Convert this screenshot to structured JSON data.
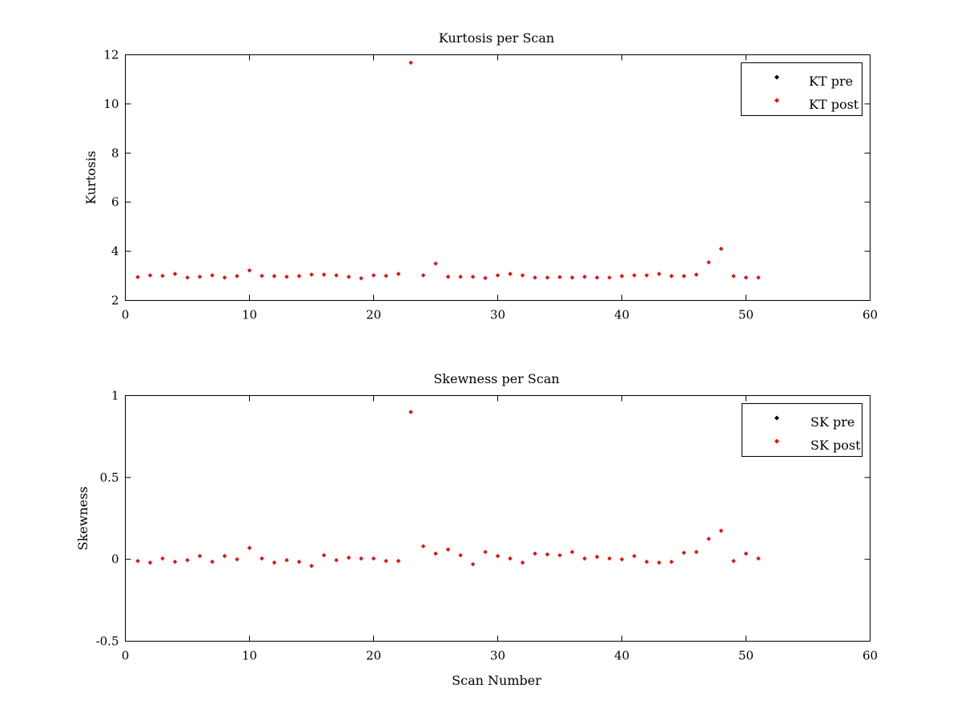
{
  "chart_data": [
    {
      "type": "scatter",
      "title": "Kurtosis per Scan",
      "xlabel": "",
      "ylabel": "Kurtosis",
      "xlim": [
        0,
        60
      ],
      "ylim": [
        2,
        12
      ],
      "xticks": [
        0,
        10,
        20,
        30,
        40,
        50,
        60
      ],
      "yticks": [
        2,
        4,
        6,
        8,
        10,
        12
      ],
      "grid": false,
      "legend_position": "top-right",
      "series": [
        {
          "name": "KT pre",
          "color": "#000000",
          "marker": "diamond",
          "x": [
            1,
            2,
            3,
            4,
            5,
            6,
            7,
            8,
            9,
            10,
            11,
            12,
            13,
            14,
            15,
            16,
            17,
            18,
            19,
            20,
            21,
            22,
            23,
            24,
            25,
            26,
            27,
            28,
            29,
            30,
            31,
            32,
            33,
            34,
            35,
            36,
            37,
            38,
            39,
            40,
            41,
            42,
            43,
            44,
            45,
            46,
            47,
            48,
            49,
            50,
            51
          ],
          "y": [
            2.95,
            3.02,
            3.0,
            3.08,
            2.93,
            2.96,
            3.02,
            2.93,
            2.99,
            3.22,
            3.0,
            2.99,
            2.96,
            2.99,
            3.05,
            3.05,
            3.02,
            2.96,
            2.9,
            3.02,
            3.0,
            3.08,
            11.68,
            3.02,
            3.5,
            2.96,
            2.96,
            2.96,
            2.91,
            3.02,
            3.08,
            3.02,
            2.93,
            2.93,
            2.95,
            2.93,
            2.96,
            2.93,
            2.93,
            2.99,
            3.02,
            3.02,
            3.08,
            2.99,
            2.99,
            3.05,
            3.55,
            4.1,
            2.99,
            2.93,
            2.93
          ]
        },
        {
          "name": "KT post",
          "color": "#ff0000",
          "marker": "diamond",
          "x": [
            1,
            2,
            3,
            4,
            5,
            6,
            7,
            8,
            9,
            10,
            11,
            12,
            13,
            14,
            15,
            16,
            17,
            18,
            19,
            20,
            21,
            22,
            23,
            24,
            25,
            26,
            27,
            28,
            29,
            30,
            31,
            32,
            33,
            34,
            35,
            36,
            37,
            38,
            39,
            40,
            41,
            42,
            43,
            44,
            45,
            46,
            47,
            48,
            49,
            50,
            51
          ],
          "y": [
            2.95,
            3.02,
            3.0,
            3.08,
            2.93,
            2.96,
            3.02,
            2.93,
            2.99,
            3.22,
            3.0,
            2.99,
            2.96,
            2.99,
            3.05,
            3.05,
            3.02,
            2.96,
            2.9,
            3.02,
            3.0,
            3.08,
            11.68,
            3.02,
            3.5,
            2.96,
            2.96,
            2.96,
            2.91,
            3.02,
            3.08,
            3.02,
            2.93,
            2.93,
            2.95,
            2.93,
            2.96,
            2.93,
            2.93,
            2.99,
            3.02,
            3.02,
            3.08,
            2.99,
            2.99,
            3.05,
            3.55,
            4.1,
            2.99,
            2.93,
            2.93
          ]
        }
      ]
    },
    {
      "type": "scatter",
      "title": "Skewness per Scan",
      "xlabel": "Scan Number",
      "ylabel": "Skewness",
      "xlim": [
        0,
        60
      ],
      "ylim": [
        -0.5,
        1
      ],
      "xticks": [
        0,
        10,
        20,
        30,
        40,
        50,
        60
      ],
      "yticks": [
        -0.5,
        0,
        0.5,
        1
      ],
      "ytick_labels": [
        "-0.5",
        "0",
        "0.5",
        "1"
      ],
      "grid": false,
      "legend_position": "top-right",
      "series": [
        {
          "name": "SK pre",
          "color": "#000000",
          "marker": "diamond",
          "x": [
            1,
            2,
            3,
            4,
            5,
            6,
            7,
            8,
            9,
            10,
            11,
            12,
            13,
            14,
            15,
            16,
            17,
            18,
            19,
            20,
            21,
            22,
            23,
            24,
            25,
            26,
            27,
            28,
            29,
            30,
            31,
            32,
            33,
            34,
            35,
            36,
            37,
            38,
            39,
            40,
            41,
            42,
            43,
            44,
            45,
            46,
            47,
            48,
            49,
            50,
            51
          ],
          "y": [
            -0.01,
            -0.02,
            0.005,
            -0.015,
            -0.005,
            0.02,
            -0.015,
            0.02,
            0.0,
            0.07,
            0.005,
            -0.02,
            -0.005,
            -0.015,
            -0.04,
            0.025,
            -0.005,
            0.01,
            0.005,
            0.005,
            -0.01,
            -0.01,
            0.9,
            0.08,
            0.035,
            0.06,
            0.025,
            -0.03,
            0.045,
            0.02,
            0.005,
            -0.02,
            0.035,
            0.03,
            0.025,
            0.045,
            0.005,
            0.015,
            0.005,
            0.0,
            0.02,
            -0.015,
            -0.02,
            -0.015,
            0.04,
            0.045,
            0.125,
            0.175,
            -0.01,
            0.035,
            0.005
          ]
        },
        {
          "name": "SK post",
          "color": "#ff0000",
          "marker": "diamond",
          "x": [
            1,
            2,
            3,
            4,
            5,
            6,
            7,
            8,
            9,
            10,
            11,
            12,
            13,
            14,
            15,
            16,
            17,
            18,
            19,
            20,
            21,
            22,
            23,
            24,
            25,
            26,
            27,
            28,
            29,
            30,
            31,
            32,
            33,
            34,
            35,
            36,
            37,
            38,
            39,
            40,
            41,
            42,
            43,
            44,
            45,
            46,
            47,
            48,
            49,
            50,
            51
          ],
          "y": [
            -0.01,
            -0.02,
            0.005,
            -0.015,
            -0.005,
            0.02,
            -0.015,
            0.02,
            0.0,
            0.07,
            0.005,
            -0.02,
            -0.005,
            -0.015,
            -0.04,
            0.025,
            -0.005,
            0.01,
            0.005,
            0.005,
            -0.01,
            -0.01,
            0.9,
            0.08,
            0.035,
            0.06,
            0.025,
            -0.03,
            0.045,
            0.02,
            0.005,
            -0.02,
            0.035,
            0.03,
            0.025,
            0.045,
            0.005,
            0.015,
            0.005,
            0.0,
            0.02,
            -0.015,
            -0.02,
            -0.015,
            0.04,
            0.045,
            0.125,
            0.175,
            -0.01,
            0.035,
            0.005
          ]
        }
      ]
    }
  ]
}
